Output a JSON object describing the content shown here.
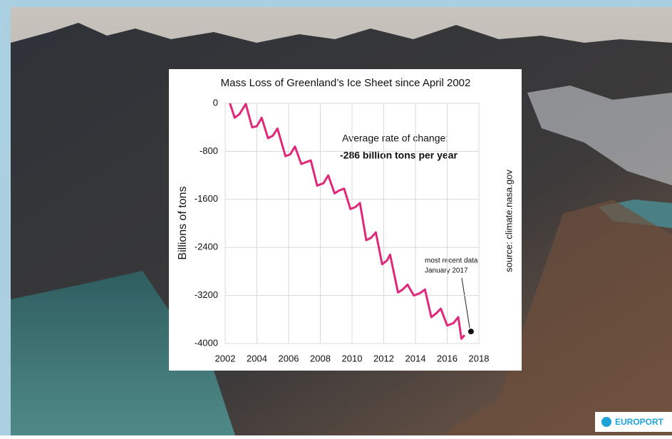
{
  "chart_data": {
    "type": "line",
    "title": "Mass Loss of Greenland’s Ice Sheet since April 2002",
    "y_label": "Billions of tons",
    "annotation_rate": "Average rate of change:",
    "annotation_rate_value": "-286 billion tons per year",
    "annotation_recent": [
      "most recent data",
      "January 2017"
    ],
    "source": "source: climate.nasa.gov",
    "watermark": "EUROPORT",
    "x": [
      2002.3,
      2002.6,
      2002.9,
      2003.3,
      2003.7,
      2004.0,
      2004.3,
      2004.7,
      2005.0,
      2005.3,
      2005.8,
      2006.1,
      2006.4,
      2006.8,
      2007.1,
      2007.4,
      2007.8,
      2008.2,
      2008.5,
      2008.9,
      2009.2,
      2009.5,
      2009.9,
      2010.2,
      2010.5,
      2010.9,
      2011.2,
      2011.5,
      2011.9,
      2012.2,
      2012.4,
      2012.9,
      2013.2,
      2013.5,
      2013.9,
      2014.3,
      2014.6,
      2015.0,
      2015.3,
      2015.6,
      2016.0,
      2016.4,
      2016.7,
      2016.9,
      2017.1
    ],
    "values": [
      0,
      -240,
      -180,
      -10,
      -400,
      -380,
      -240,
      -580,
      -540,
      -420,
      -880,
      -850,
      -720,
      -1010,
      -980,
      -950,
      -1370,
      -1330,
      -1200,
      -1500,
      -1450,
      -1420,
      -1760,
      -1730,
      -1660,
      -2280,
      -2240,
      -2150,
      -2680,
      -2620,
      -2520,
      -3150,
      -3100,
      -3020,
      -3200,
      -3160,
      -3100,
      -3560,
      -3500,
      -3420,
      -3700,
      -3660,
      -3560,
      -3920,
      -3860
    ],
    "color": "#e0287a",
    "latest_point": {
      "x": 2017.5,
      "y": -3800
    },
    "xlim": [
      2002,
      2018
    ],
    "xticks": [
      2002,
      2004,
      2006,
      2008,
      2010,
      2012,
      2014,
      2016,
      2018
    ],
    "ylim": [
      -4000,
      0
    ],
    "yticks": [
      -4000,
      -3200,
      -2400,
      -1600,
      -800,
      0
    ],
    "grid": true
  }
}
